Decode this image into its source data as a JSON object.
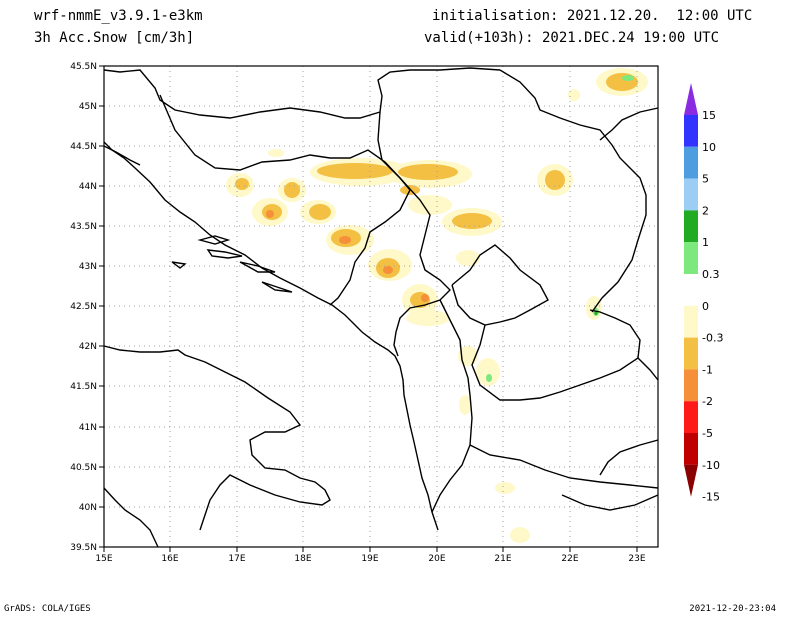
{
  "header": {
    "model": "wrf-nmmE_v3.9.1-e3km",
    "field": "3h Acc.Snow [cm/3h]",
    "init": "initialisation: 2021.12.20.  12:00 UTC",
    "valid": "valid(+103h): 2021.DEC.24 19:00 UTC"
  },
  "footer": {
    "credit": "GrADS: COLA/IGES",
    "timestamp": "2021-12-20-23:04"
  },
  "map": {
    "lon_labels": [
      "15E",
      "16E",
      "17E",
      "18E",
      "19E",
      "20E",
      "21E",
      "22E",
      "23E"
    ],
    "lat_labels": [
      "45.5N",
      "45N",
      "44.5N",
      "44N",
      "43.5N",
      "43N",
      "42.5N",
      "42N",
      "41.5N",
      "41N",
      "40.5N",
      "40N",
      "39.5N"
    ]
  },
  "colorbar": {
    "labels": [
      "15",
      "10",
      "5",
      "2",
      "1",
      "0.3",
      "0",
      "-0.3",
      "-1",
      "-2",
      "-5",
      "-10",
      "-15"
    ],
    "colors": [
      "#8a2be2",
      "#3333ff",
      "#4d9de0",
      "#9bcdf5",
      "#22aa22",
      "#7de87d",
      "#ffffff",
      "#fff8c8",
      "#f4c043",
      "#f58f3a",
      "#ff1a1a",
      "#c00000",
      "#8b0000"
    ]
  }
}
